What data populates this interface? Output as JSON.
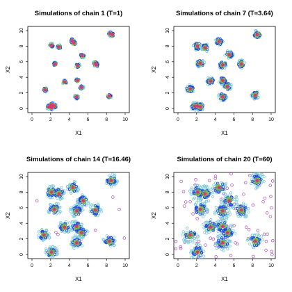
{
  "figure": {
    "title": "",
    "colors": {
      "cluster_centers": "#e0337a",
      "core_band": "#7ac143",
      "middle_band": "#1f3fd6",
      "outer_band": "#78c8d8",
      "outlier": "#a94ab4"
    }
  },
  "chart_data": [
    {
      "type": "scatter",
      "title": "Simulations of chain 1 (T=1)",
      "xlabel": "X1",
      "ylabel": "X2",
      "xlim": [
        0,
        10
      ],
      "ylim": [
        0,
        10
      ],
      "xticks": [
        0,
        2,
        4,
        6,
        8,
        10
      ],
      "yticks": [
        0,
        2,
        4,
        6,
        8,
        10
      ],
      "grid": false,
      "series": [
        {
          "values": [
            [
              2.1,
              8.1
            ],
            [
              2.9,
              7.9
            ],
            [
              4.3,
              8.7
            ],
            [
              4.5,
              8.4
            ],
            [
              8.4,
              9.6
            ],
            [
              8.6,
              9.5
            ],
            [
              5.4,
              6.8
            ],
            [
              2.5,
              5.7
            ],
            [
              4.9,
              5.5
            ],
            [
              6.9,
              5.6
            ],
            [
              6.8,
              5.8
            ],
            [
              1.4,
              2.4
            ],
            [
              3.5,
              3.4
            ],
            [
              4.9,
              3.6
            ],
            [
              5.3,
              2.7
            ],
            [
              4.8,
              1.5
            ],
            [
              8.3,
              1.6
            ],
            [
              2.0,
              0.4
            ],
            [
              2.4,
              0.3
            ],
            [
              2.1,
              0.1
            ],
            [
              1.8,
              0.2
            ],
            [
              2.2,
              0.5
            ]
          ]
        }
      ]
    },
    {
      "type": "scatter",
      "title": "Simulations of chain 7 (T=3.64)",
      "xlabel": "X1",
      "ylabel": "X2",
      "xlim": [
        0,
        10
      ],
      "ylim": [
        0,
        10
      ],
      "xticks": [
        0,
        2,
        4,
        6,
        8,
        10
      ],
      "yticks": [
        0,
        2,
        4,
        6,
        8,
        10
      ],
      "grid": false,
      "series": [
        {
          "values": [
            [
              2.1,
              8.0
            ],
            [
              2.9,
              7.8
            ],
            [
              4.4,
              8.6
            ],
            [
              8.5,
              9.5
            ],
            [
              5.5,
              6.9
            ],
            [
              2.4,
              5.8
            ],
            [
              4.8,
              5.6
            ],
            [
              6.8,
              5.7
            ],
            [
              1.3,
              2.5
            ],
            [
              3.5,
              3.5
            ],
            [
              4.8,
              3.6
            ],
            [
              5.3,
              2.8
            ],
            [
              4.8,
              1.5
            ],
            [
              8.3,
              1.7
            ],
            [
              2.1,
              0.3
            ],
            [
              1.8,
              0.3
            ],
            [
              2.4,
              0.2
            ]
          ]
        }
      ]
    },
    {
      "type": "scatter",
      "title": "Simulations of chain 14 (T=16.46)",
      "xlabel": "X1",
      "ylabel": "X2",
      "xlim": [
        0,
        10
      ],
      "ylim": [
        0,
        10
      ],
      "xticks": [
        0,
        2,
        4,
        6,
        8,
        10
      ],
      "yticks": [
        0,
        2,
        4,
        6,
        8,
        10
      ],
      "grid": false,
      "series": [
        {
          "values": [
            [
              2.1,
              8.0
            ],
            [
              2.9,
              7.8
            ],
            [
              4.4,
              8.6
            ],
            [
              8.5,
              9.5
            ],
            [
              5.5,
              6.9
            ],
            [
              2.4,
              5.8
            ],
            [
              4.8,
              5.6
            ],
            [
              6.8,
              5.7
            ],
            [
              1.3,
              2.5
            ],
            [
              3.5,
              3.5
            ],
            [
              4.8,
              3.6
            ],
            [
              5.3,
              2.8
            ],
            [
              4.8,
              1.5
            ],
            [
              8.3,
              1.7
            ],
            [
              2.1,
              0.3
            ]
          ]
        }
      ]
    },
    {
      "type": "scatter",
      "title": "Simulations of chain 20 (T=60)",
      "xlabel": "X1",
      "ylabel": "X2",
      "xlim": [
        0,
        10
      ],
      "ylim": [
        0,
        10
      ],
      "xticks": [
        0,
        2,
        4,
        6,
        8,
        10
      ],
      "yticks": [
        0,
        2,
        4,
        6,
        8,
        10
      ],
      "grid": false,
      "series": [
        {
          "values": [
            [
              2.1,
              8.0
            ],
            [
              2.9,
              7.8
            ],
            [
              4.4,
              8.6
            ],
            [
              8.5,
              9.5
            ],
            [
              5.5,
              6.9
            ],
            [
              2.4,
              5.8
            ],
            [
              4.8,
              5.6
            ],
            [
              6.8,
              5.7
            ],
            [
              1.3,
              2.5
            ],
            [
              3.5,
              3.5
            ],
            [
              4.8,
              3.6
            ],
            [
              5.3,
              2.8
            ],
            [
              4.8,
              1.5
            ],
            [
              8.3,
              1.7
            ],
            [
              2.1,
              0.3
            ]
          ]
        }
      ]
    }
  ]
}
